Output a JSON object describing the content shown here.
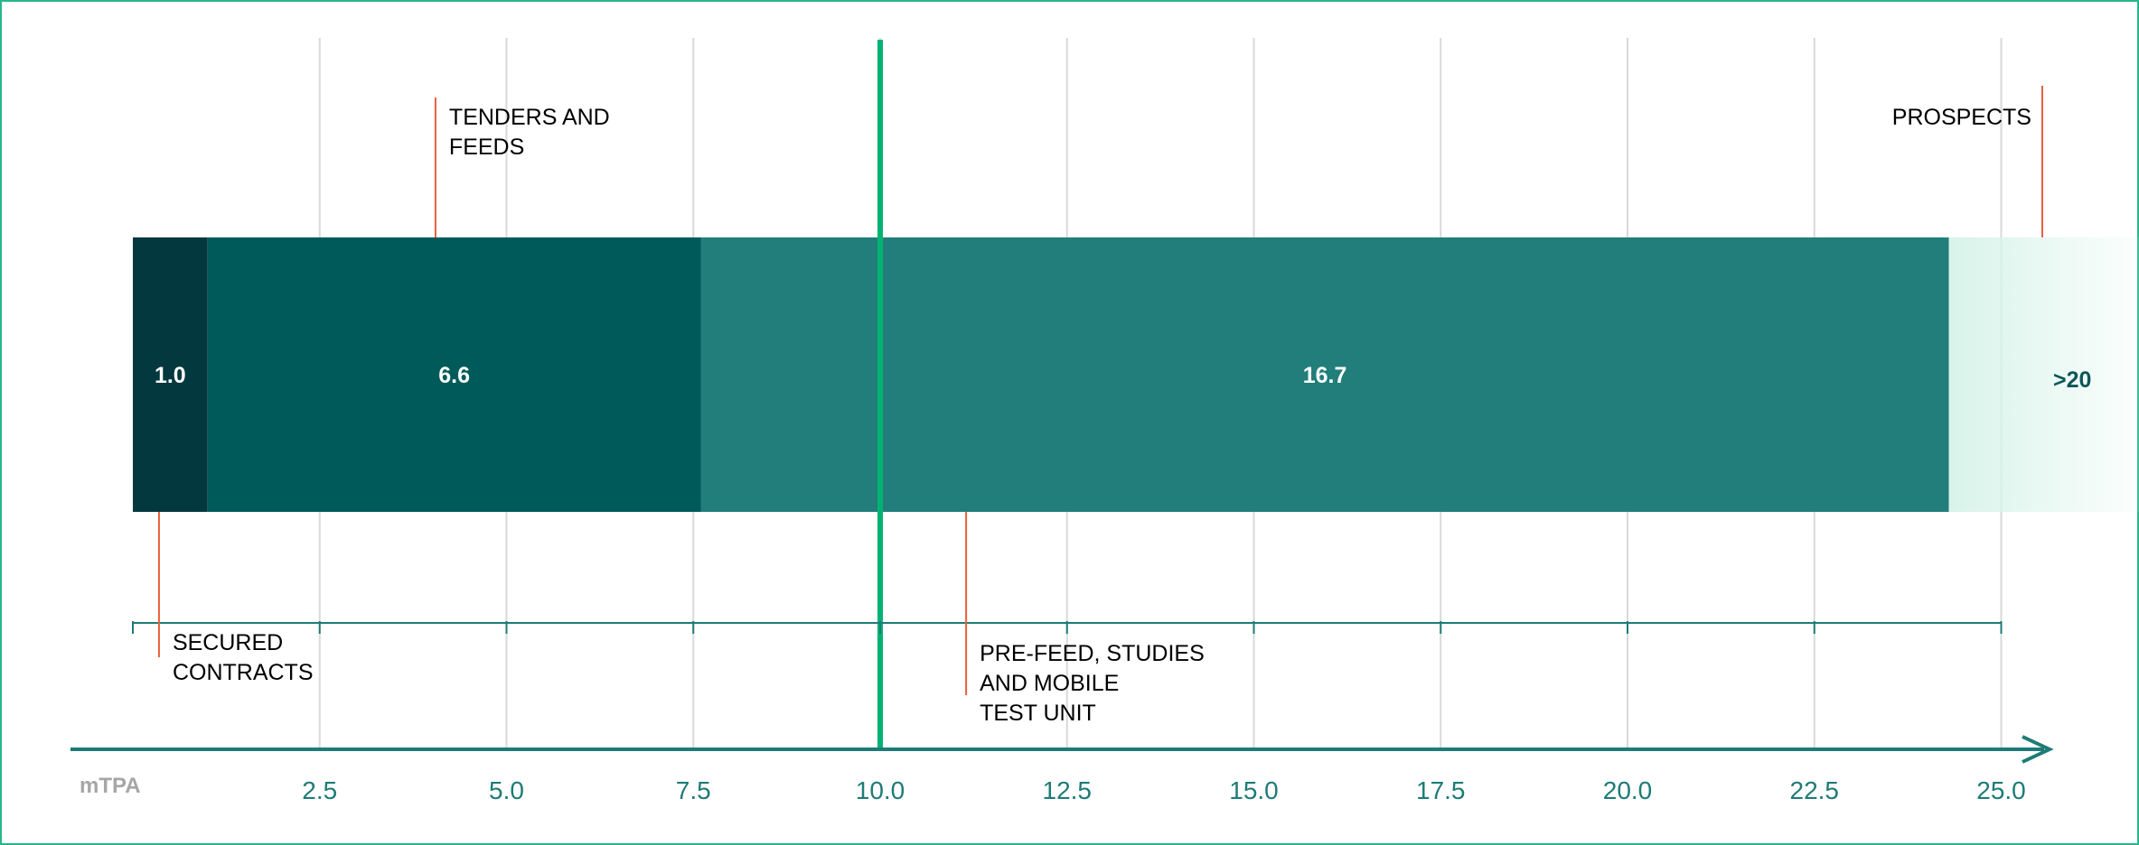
{
  "chart_data": {
    "type": "bar",
    "orientation": "horizontal",
    "stacked": true,
    "unit_label": "mTPA",
    "x_ticks": [
      "2.5",
      "5.0",
      "7.5",
      "10.0",
      "12.5",
      "15.0",
      "17.5",
      "20.0",
      "22.5",
      "25.0"
    ],
    "xlim": [
      0,
      27
    ],
    "reference_line": 10.0,
    "segments": [
      {
        "label": "SECURED CONTRACTS",
        "value_label": "1.0",
        "start": 0.0,
        "end": 1.0,
        "color": "#04383f"
      },
      {
        "label": "TENDERS AND FEEDS",
        "value_label": "6.6",
        "start": 1.0,
        "end": 7.6,
        "color": "#005a5a"
      },
      {
        "label": "PRE-FEED, STUDIES AND MOBILE TEST UNIT",
        "value_label": "16.7",
        "start": 7.6,
        "end": 24.3,
        "color": "#217e7a"
      },
      {
        "label": "PROSPECTS",
        "value_label": ">20",
        "start": 24.3,
        "end": 27.0,
        "color": "#d8f3ea"
      }
    ],
    "annotations": [
      {
        "lines": [
          "TENDERS AND",
          "FEEDS"
        ],
        "x": 4.05,
        "position": "above",
        "align": "left"
      },
      {
        "lines": [
          "PROSPECTS"
        ],
        "x": 25.55,
        "position": "above",
        "align": "right"
      },
      {
        "lines": [
          "SECURED",
          "CONTRACTS"
        ],
        "x": 0.35,
        "position": "below",
        "align": "left"
      },
      {
        "lines": [
          "PRE-FEED, STUDIES",
          "AND MOBILE",
          "TEST UNIT"
        ],
        "x": 11.15,
        "position": "below",
        "align": "left"
      }
    ],
    "colors": {
      "axis": "#1e7b76",
      "reference_line": "#00b373",
      "grid": "#d9d9d9",
      "leader": "#e8603c",
      "unit_label": "#a6a6a6",
      "frame": "#2bb58c",
      "text": "#000000",
      "segment_text": "#ffffff",
      "prospects_text": "#0b5757"
    }
  }
}
